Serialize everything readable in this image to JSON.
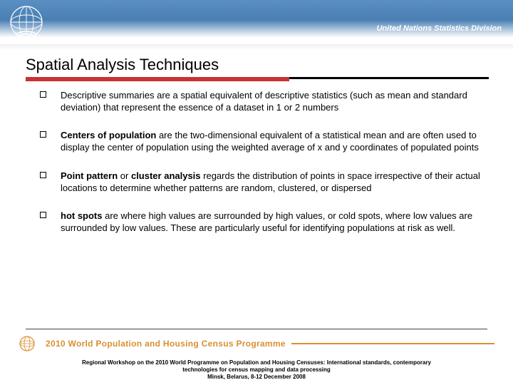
{
  "header": {
    "org_title": "United Nations Statistics Division",
    "logo_alt": "un-emblem"
  },
  "slide": {
    "title": "Spatial Analysis Techniques",
    "accent_color": "#c83232",
    "bullets": [
      {
        "html": "Descriptive summaries are a spatial equivalent of descriptive statistics (such as mean and standard deviation) that represent the essence of a dataset in 1 or 2 numbers"
      },
      {
        "html": "<b>Centers of population</b> are the two-dimensional equivalent of a statistical mean and are often used to display the center of population using the weighted average of x and y coordinates of populated points"
      },
      {
        "html": "<b>Point pattern</b> or <b>cluster analysis</b> regards the distribution of points in space irrespective of their actual locations to determine whether patterns are random, clustered, or dispersed"
      },
      {
        "html": "<b>hot spots</b> are where high values are surrounded by high values, or cold spots, where low values are surrounded by low values. These are particularly useful for identifying populations at risk as well."
      }
    ]
  },
  "footer": {
    "banner_text": "2010 World Population and Housing Census Programme",
    "banner_color": "#d89030",
    "caption_line1": "Regional Workshop on the 2010 World Programme on Population and Housing Censuses: International standards, contemporary",
    "caption_line2": "technologies for census mapping and data processing",
    "caption_line3": "Minsk, Belarus, 8-12 December 2008"
  }
}
